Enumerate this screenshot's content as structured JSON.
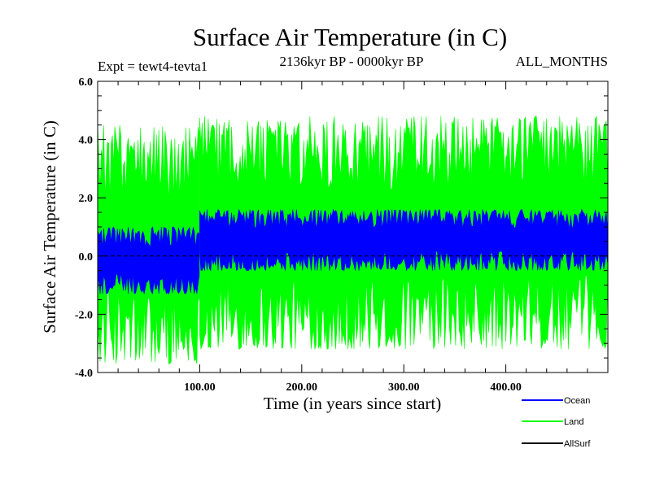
{
  "chart_data": {
    "type": "line",
    "title": "Surface Air Temperature (in C)",
    "subtitle_left": "Expt = tewt4-tevta1",
    "subtitle_center": "2136kyr BP - 0000kyr BP",
    "subtitle_right": "ALL_MONTHS",
    "xlabel": "Time (in years since start)",
    "ylabel": "Surface Air Temperature (in C)",
    "xlim": [
      0,
      500
    ],
    "ylim": [
      -4.0,
      6.0
    ],
    "x_ticks": [
      100,
      200,
      300,
      400
    ],
    "x_tick_labels": [
      "100.00",
      "200.00",
      "300.00",
      "400.00"
    ],
    "y_ticks": [
      -4,
      -2,
      0,
      2,
      4,
      6
    ],
    "y_tick_labels": [
      "-4.0",
      "-2.0",
      "0.0",
      "2.0",
      "4.0",
      "6.0"
    ],
    "zero_line": 0.0,
    "series": [
      {
        "name": "Ocean",
        "color": "#0000ff",
        "segments": [
          {
            "x_start": 0,
            "x_end": 100,
            "min": -1.3,
            "max": 1.0,
            "mean": -0.15
          },
          {
            "x_start": 100,
            "x_end": 500,
            "min": -0.5,
            "max": 1.6,
            "mean": 0.5
          }
        ]
      },
      {
        "name": "Land",
        "color": "#00ff00",
        "segments": [
          {
            "x_start": 0,
            "x_end": 100,
            "min": -3.7,
            "max": 4.5,
            "mean": 0.2
          },
          {
            "x_start": 100,
            "x_end": 500,
            "min": -3.2,
            "max": 4.8,
            "mean": 0.9
          }
        ]
      },
      {
        "name": "AllSurf",
        "color": "#000000",
        "segments": []
      }
    ]
  }
}
